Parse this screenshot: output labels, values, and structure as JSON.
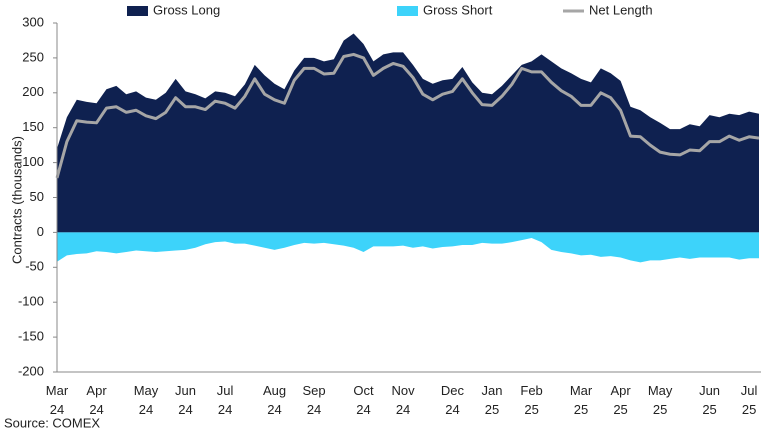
{
  "chart_data": {
    "type": "area",
    "y_axis_label": "Contracts (thousands)",
    "source": "Source: COMEX",
    "legend": "top",
    "ylim": [
      -200,
      300
    ],
    "yticks": [
      -200,
      -150,
      -100,
      -50,
      0,
      50,
      100,
      150,
      200,
      250,
      300
    ],
    "categories": [
      "Mar 24",
      null,
      null,
      null,
      "Apr 24",
      null,
      null,
      null,
      null,
      "May 24",
      null,
      null,
      null,
      "Jun 24",
      null,
      null,
      null,
      "Jul 24",
      null,
      null,
      null,
      null,
      "Aug 24",
      null,
      null,
      null,
      "Sep 24",
      null,
      null,
      null,
      null,
      "Oct 24",
      null,
      null,
      null,
      "Nov 24",
      null,
      null,
      null,
      null,
      "Dec 24",
      null,
      null,
      null,
      "Jan 25",
      null,
      null,
      null,
      "Feb 25",
      null,
      null,
      null,
      null,
      "Mar 25",
      null,
      null,
      null,
      "Apr 25",
      null,
      null,
      null,
      "May 25",
      null,
      null,
      null,
      null,
      "Jun 25",
      null,
      null,
      null,
      "Jul 25",
      null
    ],
    "series": [
      {
        "name": "Gross Long",
        "kind": "area",
        "color": "#0f2150",
        "values": [
          120,
          165,
          190,
          187,
          185,
          205,
          210,
          198,
          202,
          193,
          190,
          200,
          220,
          202,
          198,
          192,
          202,
          200,
          195,
          212,
          240,
          225,
          213,
          205,
          232,
          250,
          250,
          245,
          248,
          275,
          285,
          270,
          245,
          255,
          258,
          258,
          240,
          220,
          213,
          218,
          220,
          237,
          215,
          200,
          198,
          210,
          225,
          240,
          245,
          255,
          245,
          235,
          228,
          220,
          215,
          235,
          228,
          217,
          180,
          175,
          165,
          157,
          148,
          148,
          155,
          152,
          168,
          165,
          170,
          168,
          173,
          170
        ]
      },
      {
        "name": "Gross Short",
        "kind": "area",
        "color": "#3dd3fa",
        "values": [
          -42,
          -33,
          -31,
          -30,
          -27,
          -28,
          -30,
          -28,
          -26,
          -27,
          -28,
          -27,
          -26,
          -25,
          -22,
          -17,
          -14,
          -13,
          -16,
          -16,
          -19,
          -22,
          -25,
          -22,
          -18,
          -15,
          -16,
          -15,
          -17,
          -19,
          -22,
          -28,
          -20,
          -20,
          -20,
          -19,
          -22,
          -20,
          -23,
          -21,
          -20,
          -18,
          -18,
          -15,
          -16,
          -16,
          -14,
          -11,
          -8,
          -14,
          -25,
          -28,
          -30,
          -33,
          -32,
          -35,
          -34,
          -36,
          -40,
          -43,
          -40,
          -40,
          -38,
          -36,
          -38,
          -36,
          -36,
          -36,
          -36,
          -39,
          -37,
          -37
        ]
      },
      {
        "name": "Net Length",
        "kind": "line",
        "color": "#a6a6a6",
        "values": [
          78,
          130,
          160,
          158,
          157,
          178,
          180,
          172,
          175,
          167,
          163,
          172,
          193,
          180,
          180,
          176,
          188,
          185,
          178,
          195,
          220,
          198,
          190,
          185,
          218,
          235,
          235,
          227,
          228,
          252,
          255,
          250,
          225,
          235,
          242,
          238,
          222,
          198,
          190,
          198,
          202,
          220,
          200,
          183,
          182,
          195,
          212,
          235,
          230,
          230,
          215,
          203,
          195,
          182,
          182,
          200,
          193,
          175,
          138,
          137,
          125,
          115,
          112,
          111,
          118,
          117,
          130,
          130,
          138,
          132,
          137,
          135
        ]
      }
    ]
  }
}
